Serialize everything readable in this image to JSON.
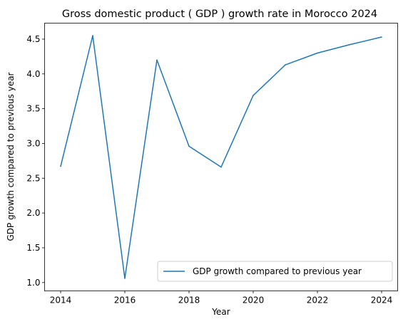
{
  "chart_data": {
    "type": "line",
    "title": "Gross domestic product ( GDP ) growth rate in Morocco 2024",
    "xlabel": "Year",
    "ylabel": "GDP growth compared to previous year",
    "x": [
      2014,
      2015,
      2016,
      2017,
      2018,
      2019,
      2020,
      2021,
      2022,
      2023,
      2024
    ],
    "series": [
      {
        "name": "GDP growth compared to previous year",
        "values": [
          2.67,
          4.55,
          1.06,
          4.2,
          2.96,
          2.66,
          3.69,
          4.13,
          4.3,
          4.42,
          4.53
        ],
        "color": "#1f77b4"
      }
    ],
    "xlim": [
      2013.5,
      2024.5
    ],
    "ylim": [
      0.88,
      4.73
    ],
    "xticks": [
      "2014",
      "2016",
      "2018",
      "2020",
      "2022",
      "2024"
    ],
    "yticks": [
      "1.0",
      "1.5",
      "2.0",
      "2.5",
      "3.0",
      "3.5",
      "4.0",
      "4.5"
    ],
    "grid": false,
    "legend": "lower-right"
  }
}
